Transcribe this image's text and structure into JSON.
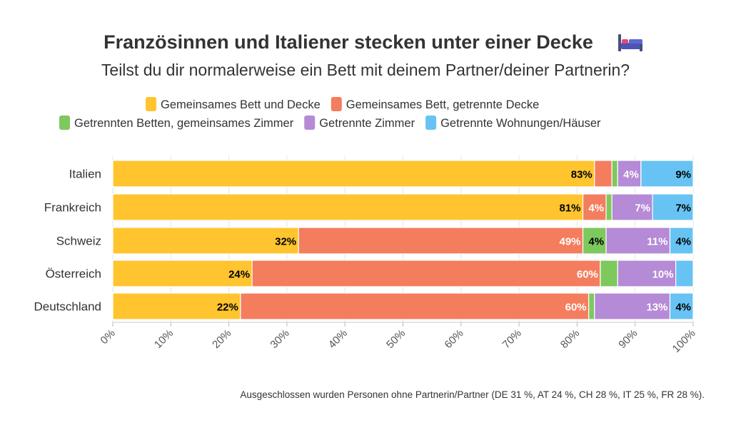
{
  "chart_data": {
    "type": "bar",
    "orientation": "horizontal",
    "stacked": true,
    "title": "Französinnen und Italiener stecken unter einer Decke",
    "title_icon": "bed-icon",
    "subtitle": "Teilst du dir normalerweise ein Bett mit deinem Partner/deiner Partnerin?",
    "categories": [
      "Italien",
      "Frankreich",
      "Schweiz",
      "Österreich",
      "Deutschland"
    ],
    "series": [
      {
        "name": "Gemeinsames Bett und Decke",
        "color": "#FFC42E",
        "values": [
          83,
          81,
          32,
          24,
          22
        ],
        "labels": [
          "83%",
          "81%",
          "32%",
          "24%",
          "22%"
        ],
        "label_color": "#000000"
      },
      {
        "name": "Gemeinsames Bett, getrennte Decke",
        "color": "#F47D5E",
        "values": [
          3,
          4,
          49,
          60,
          60
        ],
        "labels": [
          "",
          "4%",
          "49%",
          "60%",
          "60%"
        ],
        "label_color": "#ffffff"
      },
      {
        "name": "Getrennten Betten, gemeinsames Zimmer",
        "color": "#7DC95E",
        "values": [
          1,
          1,
          4,
          3,
          1
        ],
        "labels": [
          "",
          "",
          "4%",
          "",
          ""
        ],
        "label_color": "#000000"
      },
      {
        "name": "Getrennte Zimmer",
        "color": "#B58AD6",
        "values": [
          4,
          7,
          11,
          10,
          13
        ],
        "labels": [
          "4%",
          "7%",
          "11%",
          "10%",
          "13%"
        ],
        "label_color": "#ffffff"
      },
      {
        "name": "Getrennte Wohnungen/Häuser",
        "color": "#67C3F3",
        "values": [
          9,
          7,
          4,
          3,
          4
        ],
        "labels": [
          "9%",
          "7%",
          "4%",
          "",
          "4%"
        ],
        "label_color": "#000000"
      }
    ],
    "xlim": [
      0,
      100
    ],
    "xticks": [
      "0%",
      "10%",
      "20%",
      "30%",
      "40%",
      "50%",
      "60%",
      "70%",
      "80%",
      "90%",
      "100%"
    ],
    "grid": true,
    "legend_position": "top",
    "footnote": "Ausgeschlossen wurden Personen ohne Partnerin/Partner (DE 31 %, AT 24 %, CH 28 %, IT 25 %, FR 28 %)."
  }
}
